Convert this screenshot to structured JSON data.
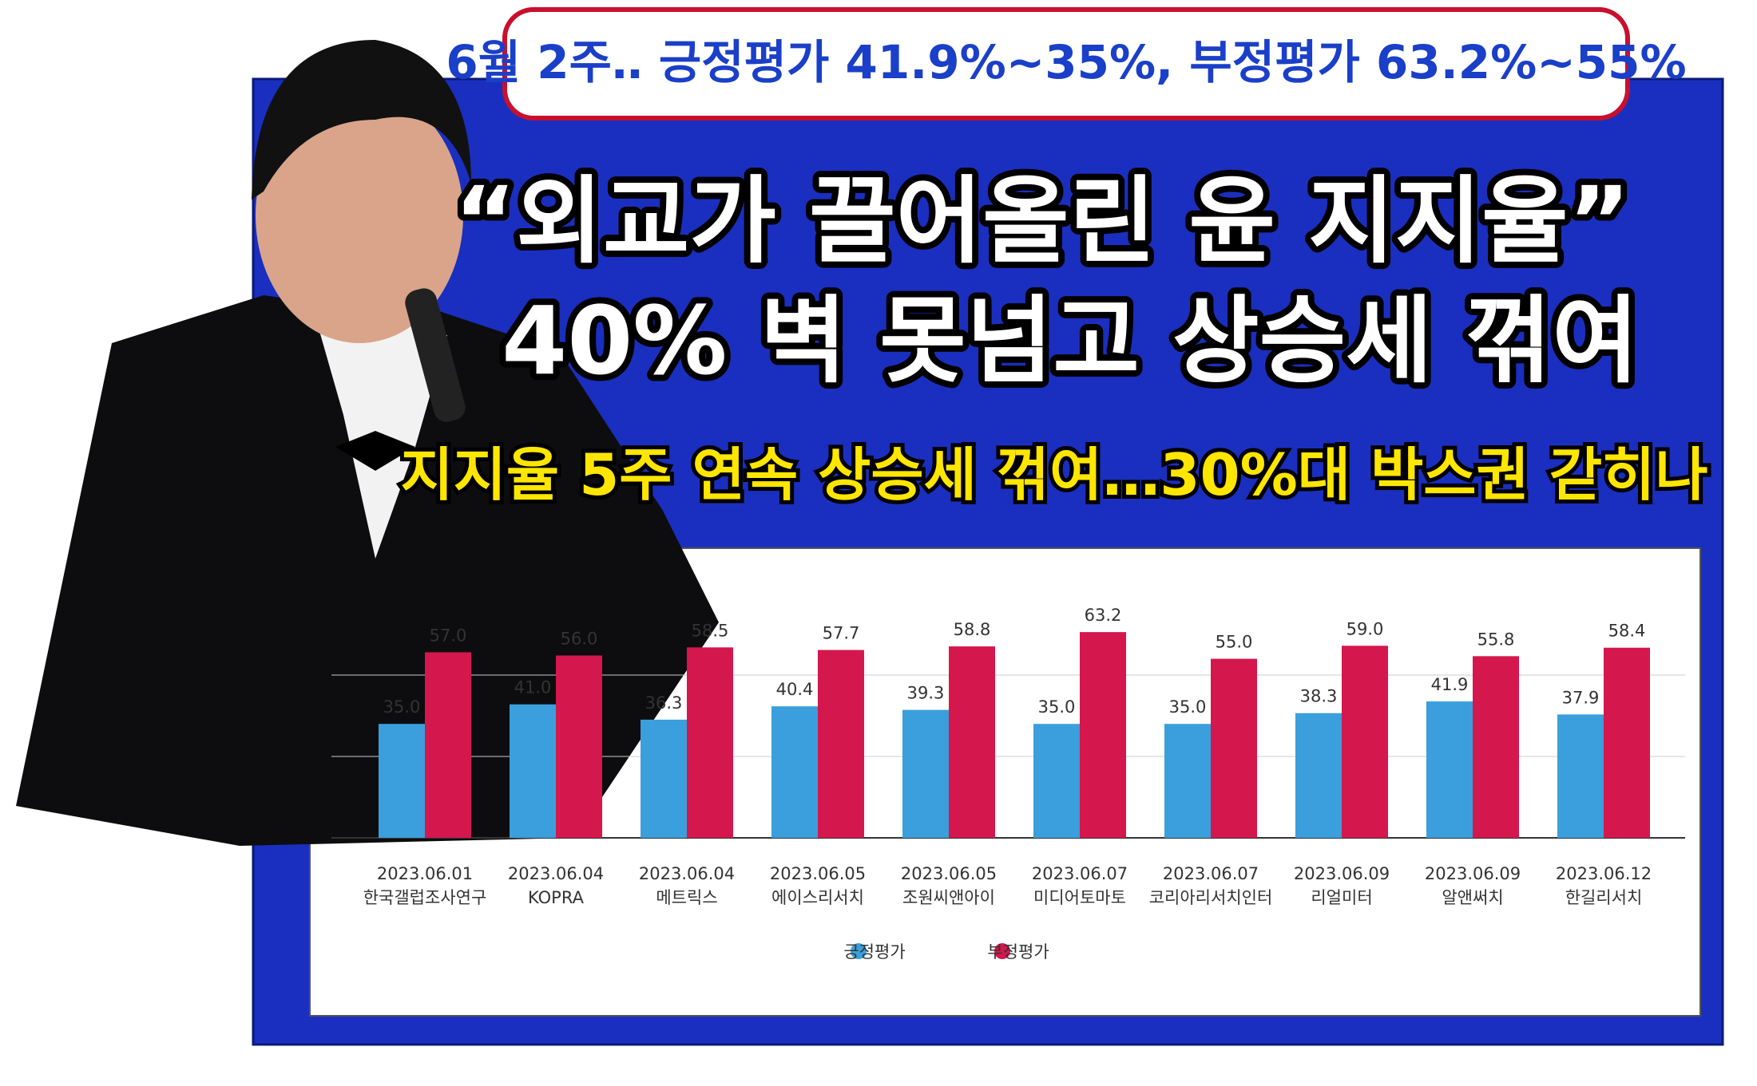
{
  "header": {
    "badge": "6월 2주‥ 긍정평가 41.9%~35%, 부정평가 63.2%~55%",
    "headline_1": "“외교가 끌어올린 윤 지지율”",
    "headline_2": "40% 벽 못넘고 상승세 꺾여",
    "subheadline": "지지율 5주 연속 상승세 꺾여…30%대 박스권 갇히나"
  },
  "chart_data": {
    "type": "bar",
    "categories": [
      [
        "2023.06.01",
        "한국갤럽조사연구"
      ],
      [
        "2023.06.04",
        "KOPRA"
      ],
      [
        "2023.06.04",
        "메트릭스"
      ],
      [
        "2023.06.05",
        "에이스리서치"
      ],
      [
        "2023.06.05",
        "조원씨앤아이"
      ],
      [
        "2023.06.07",
        "미디어토마토"
      ],
      [
        "2023.06.07",
        "코리아리서치인터"
      ],
      [
        "2023.06.09",
        "리얼미터"
      ],
      [
        "2023.06.09",
        "알앤써치"
      ],
      [
        "2023.06.12",
        "한길리서치"
      ]
    ],
    "series": [
      {
        "name": "긍정평가",
        "color": "#3a9fdc",
        "values": [
          35,
          41,
          36.3,
          40.4,
          39.3,
          35,
          35,
          38.3,
          41.9,
          37.9
        ],
        "value_labels": [
          "35.0",
          "41.0",
          "36.3",
          "40.4",
          "39.3",
          "35.0",
          "35.0",
          "38.3",
          "41.9",
          "37.9"
        ]
      },
      {
        "name": "부정평가",
        "color": "#d4174c",
        "values": [
          57,
          56,
          58.5,
          57.7,
          58.8,
          63.2,
          55,
          59,
          55.8,
          58.4
        ],
        "value_labels": [
          "57.0",
          "56.0",
          "58.5",
          "57.7",
          "58.8",
          "63.2",
          "55.0",
          "59.0",
          "55.8",
          "58.4"
        ]
      }
    ],
    "ylim": [
      0,
      75
    ],
    "yticks": [
      0,
      25,
      50
    ],
    "grid": true,
    "legend": "bottom"
  }
}
